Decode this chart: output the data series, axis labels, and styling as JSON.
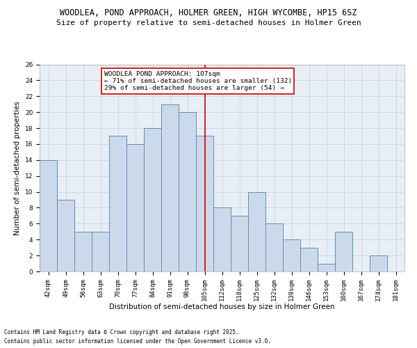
{
  "title_line1": "WOODLEA, POND APPROACH, HOLMER GREEN, HIGH WYCOMBE, HP15 6SZ",
  "title_line2": "Size of property relative to semi-detached houses in Holmer Green",
  "xlabel": "Distribution of semi-detached houses by size in Holmer Green",
  "ylabel": "Number of semi-detached properties",
  "categories": [
    "42sqm",
    "49sqm",
    "56sqm",
    "63sqm",
    "70sqm",
    "77sqm",
    "84sqm",
    "91sqm",
    "98sqm",
    "105sqm",
    "112sqm",
    "118sqm",
    "125sqm",
    "132sqm",
    "139sqm",
    "146sqm",
    "153sqm",
    "160sqm",
    "167sqm",
    "174sqm",
    "181sqm"
  ],
  "values": [
    14,
    9,
    5,
    5,
    17,
    16,
    18,
    21,
    20,
    17,
    8,
    7,
    10,
    6,
    4,
    3,
    1,
    5,
    0,
    2,
    0
  ],
  "bar_color": "#ccd9ea",
  "bar_edge_color": "#5b8db8",
  "annotation_title": "WOODLEA POND APPROACH: 107sqm",
  "annotation_line1": "← 71% of semi-detached houses are smaller (132)",
  "annotation_line2": "29% of semi-detached houses are larger (54) →",
  "annotation_box_facecolor": "#ffffff",
  "annotation_box_edgecolor": "#cc0000",
  "vline_color": "#cc0000",
  "vline_x": 9.5,
  "ylim": [
    0,
    26
  ],
  "yticks": [
    0,
    2,
    4,
    6,
    8,
    10,
    12,
    14,
    16,
    18,
    20,
    22,
    24,
    26
  ],
  "grid_color": "#c0cfe0",
  "background_color": "#e8eef5",
  "footer_line1": "Contains HM Land Registry data © Crown copyright and database right 2025.",
  "footer_line2": "Contains public sector information licensed under the Open Government Licence v3.0.",
  "title_fontsize": 8.5,
  "subtitle_fontsize": 8,
  "tick_fontsize": 6.5,
  "ylabel_fontsize": 7.5,
  "xlabel_fontsize": 7.5,
  "annotation_fontsize": 6.8,
  "footer_fontsize": 5.5
}
